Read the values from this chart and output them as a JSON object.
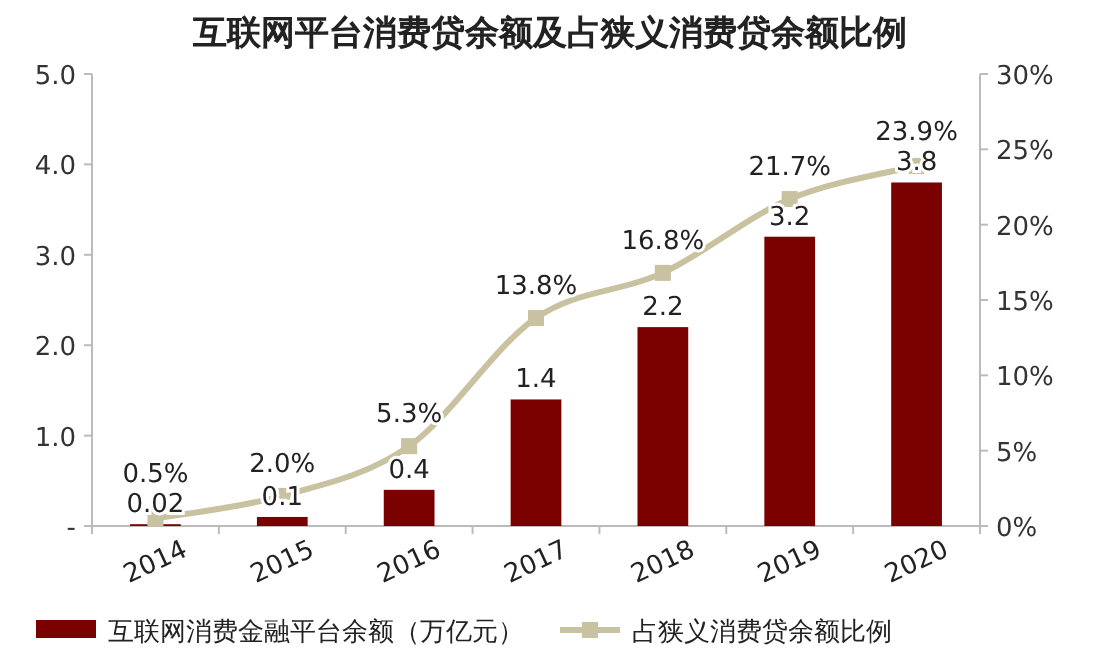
{
  "chart_data": {
    "type": "bar",
    "title": "互联网平台消费贷余额及占狭义消费贷余额比例",
    "categories": [
      "2014",
      "2015",
      "2016",
      "2017",
      "2018",
      "2019",
      "2020"
    ],
    "series": [
      {
        "name": "互联网消费金融平台余额（万亿元）",
        "color": "#7b0000",
        "values": [
          0.02,
          0.1,
          0.4,
          1.4,
          2.2,
          3.2,
          3.8
        ],
        "value_labels": [
          "0.02",
          "0.1",
          "0.4",
          "1.4",
          "2.2",
          "3.2",
          "3.8"
        ]
      },
      {
        "name": "占狭义消费贷余额比例",
        "type": "line",
        "axis": "y2",
        "color": "#c8c2a0",
        "marker": "square",
        "values": [
          0.5,
          2.0,
          5.3,
          13.8,
          16.8,
          21.7,
          23.9
        ],
        "value_labels": [
          "0.5%",
          "2.0%",
          "5.3%",
          "13.8%",
          "16.8%",
          "21.7%",
          "23.9%"
        ]
      }
    ],
    "ylim": [
      0,
      5
    ],
    "yticks": [
      {
        "value": 0,
        "label": "-"
      },
      {
        "value": 1,
        "label": "1.0"
      },
      {
        "value": 2,
        "label": "2.0"
      },
      {
        "value": 3,
        "label": "3.0"
      },
      {
        "value": 4,
        "label": "4.0"
      },
      {
        "value": 5,
        "label": "5.0"
      }
    ],
    "y2lim": [
      0,
      30
    ],
    "y2ticks": [
      {
        "value": 0,
        "label": "0%"
      },
      {
        "value": 5,
        "label": "5%"
      },
      {
        "value": 10,
        "label": "10%"
      },
      {
        "value": 15,
        "label": "15%"
      },
      {
        "value": 20,
        "label": "20%"
      },
      {
        "value": 25,
        "label": "25%"
      },
      {
        "value": 30,
        "label": "30%"
      }
    ],
    "legend": "bottom",
    "grid": false
  }
}
